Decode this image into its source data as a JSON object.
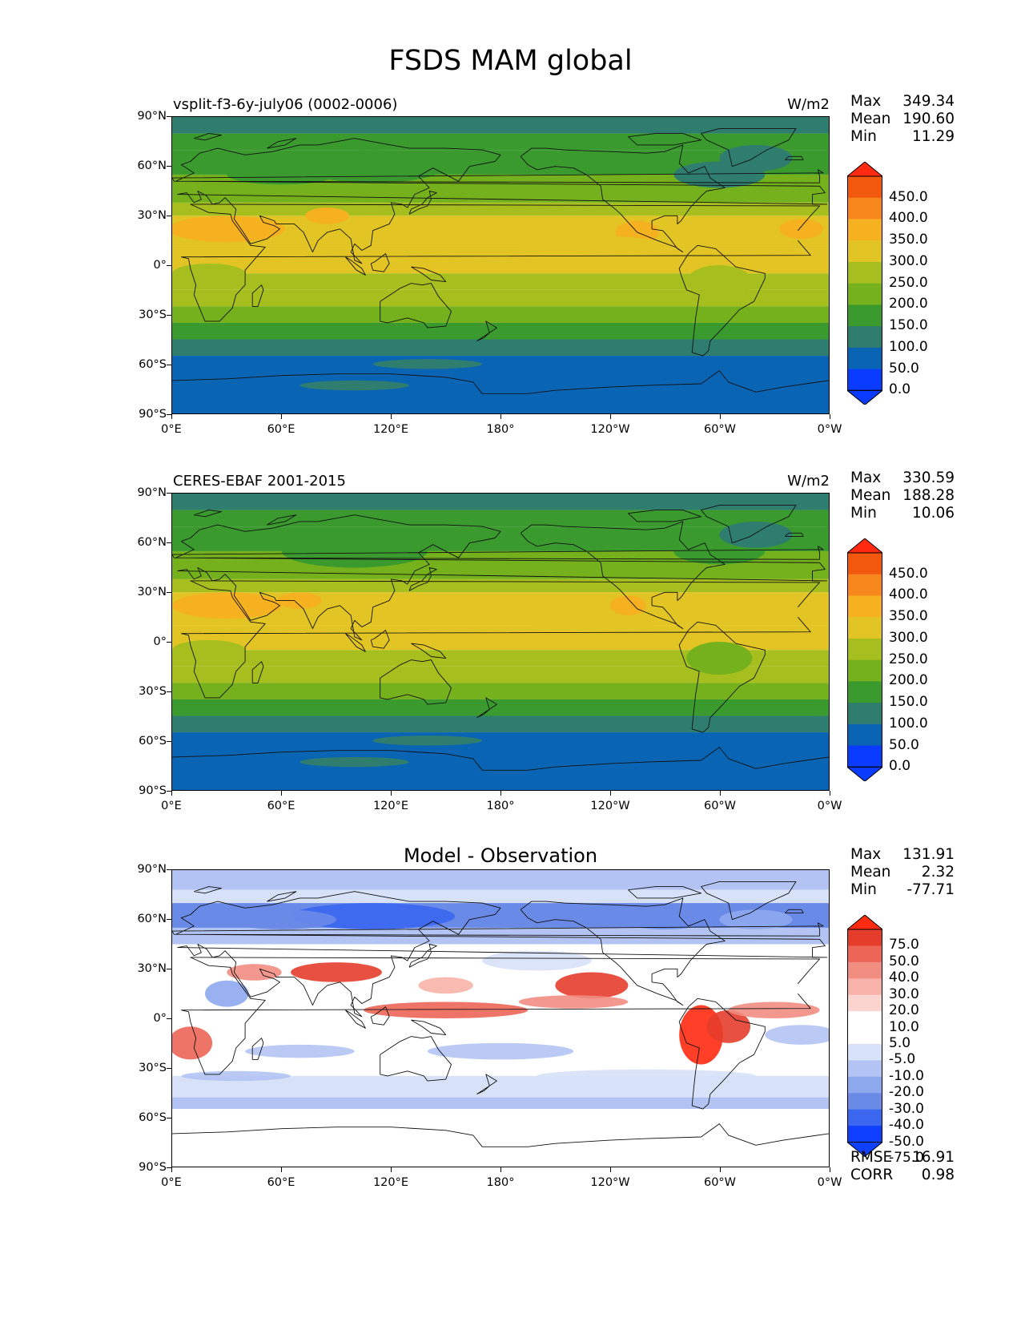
{
  "figure": {
    "title": "FSDS MAM global"
  },
  "axes": {
    "lat_ticks": [
      "90°N",
      "60°N",
      "30°N",
      "0°",
      "30°S",
      "60°S",
      "90°S"
    ],
    "lon_ticks": [
      "0°E",
      "60°E",
      "120°E",
      "180°",
      "120°W",
      "60°W",
      "0°W"
    ]
  },
  "panels": [
    {
      "id": "model",
      "title_left": "vsplit-f3-6y-july06 (0002-0006)",
      "units": "W/m2",
      "stats": {
        "max_label": "Max",
        "max": "349.34",
        "mean_label": "Mean",
        "mean": "190.60",
        "min_label": "Min",
        "min": "11.29"
      },
      "colorbar_labels": [
        "450.0",
        "400.0",
        "350.0",
        "300.0",
        "250.0",
        "200.0",
        "150.0",
        "100.0",
        "50.0",
        "0.0"
      ]
    },
    {
      "id": "obs",
      "title_left": "CERES-EBAF 2001-2015",
      "units": "W/m2",
      "stats": {
        "max_label": "Max",
        "max": "330.59",
        "mean_label": "Mean",
        "mean": "188.28",
        "min_label": "Min",
        "min": "10.06"
      },
      "colorbar_labels": [
        "450.0",
        "400.0",
        "350.0",
        "300.0",
        "250.0",
        "200.0",
        "150.0",
        "100.0",
        "50.0",
        "0.0"
      ]
    },
    {
      "id": "diff",
      "title_center": "Model - Observation",
      "stats": {
        "max_label": "Max",
        "max": "131.91",
        "mean_label": "Mean",
        "mean": "2.32",
        "min_label": "Min",
        "min": "-77.71"
      },
      "colorbar_labels": [
        "75.0",
        "50.0",
        "40.0",
        "30.0",
        "20.0",
        "10.0",
        "5.0",
        "-5.0",
        "-10.0",
        "-20.0",
        "-30.0",
        "-40.0",
        "-50.0",
        "-75.0"
      ],
      "error_stats": {
        "rmse_label": "RMSE",
        "rmse": "16.91",
        "corr_label": "CORR",
        "corr": "0.98"
      }
    }
  ],
  "colormaps": {
    "field": [
      "#0a3cff",
      "#0a64b4",
      "#2e7d6e",
      "#3a9a2e",
      "#74b11c",
      "#a6bf1f",
      "#e2c524",
      "#f6b121",
      "#f7871c",
      "#f2590f",
      "#ff2a10"
    ],
    "diff": [
      "#1040ff",
      "#3a66f0",
      "#6a8ae8",
      "#8ea8ee",
      "#b3c4f4",
      "#d7e1f8",
      "#ffffff",
      "#ffffff",
      "#fbd4d0",
      "#f8b2aa",
      "#f28d82",
      "#ec6556",
      "#e53d2c",
      "#ff2a10"
    ]
  }
}
